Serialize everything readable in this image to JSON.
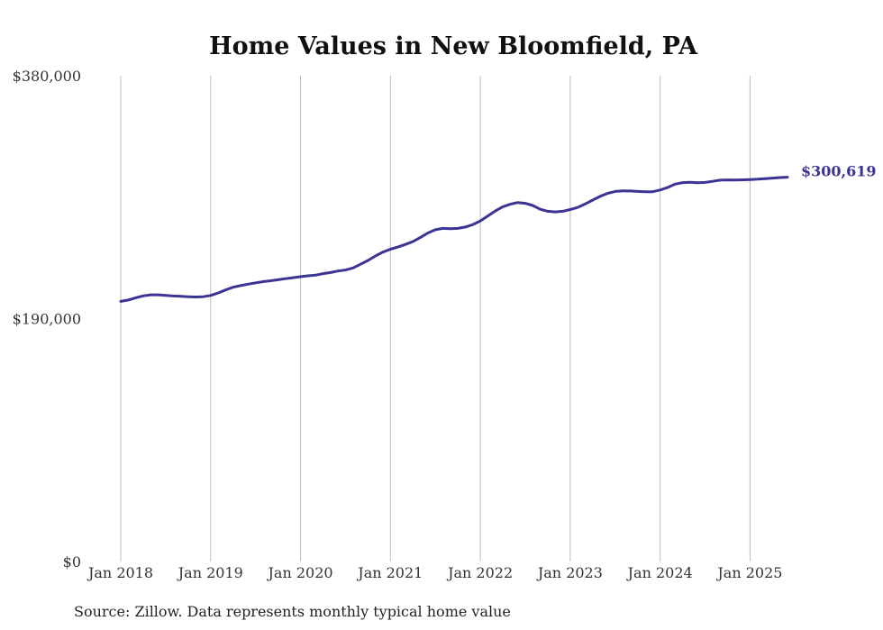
{
  "chart_data": {
    "type": "line",
    "title": "Home Values in New Bloomfield, PA",
    "source": "Source: Zillow. Data represents monthly typical home value",
    "ylim": [
      0,
      380000
    ],
    "yticks": [
      {
        "value": 0,
        "label": "$0"
      },
      {
        "value": 190000,
        "label": "$190,000"
      },
      {
        "value": 380000,
        "label": "$380,000"
      }
    ],
    "xlim": [
      "2018-01",
      "2025-06"
    ],
    "xticks": [
      {
        "value": "2018-01",
        "label": "Jan 2018"
      },
      {
        "value": "2019-01",
        "label": "Jan 2019"
      },
      {
        "value": "2020-01",
        "label": "Jan 2020"
      },
      {
        "value": "2021-01",
        "label": "Jan 2021"
      },
      {
        "value": "2022-01",
        "label": "Jan 2022"
      },
      {
        "value": "2023-01",
        "label": "Jan 2023"
      },
      {
        "value": "2024-01",
        "label": "Jan 2024"
      },
      {
        "value": "2025-01",
        "label": "Jan 2025"
      }
    ],
    "grid": "vertical",
    "line_color": "#3b3494",
    "end_label": "$300,619",
    "series": [
      {
        "x": [
          "2018-01",
          "2018-02",
          "2018-03",
          "2018-04",
          "2018-05",
          "2018-06",
          "2018-07",
          "2018-08",
          "2018-09",
          "2018-10",
          "2018-11",
          "2018-12",
          "2019-01",
          "2019-02",
          "2019-03",
          "2019-04",
          "2019-05",
          "2019-06",
          "2019-07",
          "2019-08",
          "2019-09",
          "2019-10",
          "2019-11",
          "2019-12",
          "2020-01",
          "2020-02",
          "2020-03",
          "2020-04",
          "2020-05",
          "2020-06",
          "2020-07",
          "2020-08",
          "2020-09",
          "2020-10",
          "2020-11",
          "2020-12",
          "2021-01",
          "2021-02",
          "2021-03",
          "2021-04",
          "2021-05",
          "2021-06",
          "2021-07",
          "2021-08",
          "2021-09",
          "2021-10",
          "2021-11",
          "2021-12",
          "2022-01",
          "2022-02",
          "2022-03",
          "2022-04",
          "2022-05",
          "2022-06",
          "2022-07",
          "2022-08",
          "2022-09",
          "2022-10",
          "2022-11",
          "2022-12",
          "2023-01",
          "2023-02",
          "2023-03",
          "2023-04",
          "2023-05",
          "2023-06",
          "2023-07",
          "2023-08",
          "2023-09",
          "2023-10",
          "2023-11",
          "2023-12",
          "2024-01",
          "2024-02",
          "2024-03",
          "2024-04",
          "2024-05",
          "2024-06",
          "2024-07",
          "2024-08",
          "2024-09",
          "2024-10",
          "2024-11",
          "2024-12",
          "2025-01",
          "2025-02",
          "2025-03",
          "2025-04",
          "2025-05",
          "2025-06"
        ],
        "values": [
          203500,
          204500,
          206300,
          207800,
          208600,
          208600,
          208100,
          207700,
          207400,
          207100,
          206900,
          207100,
          208100,
          210000,
          212400,
          214500,
          215800,
          216900,
          218000,
          218900,
          219600,
          220400,
          221200,
          222000,
          222800,
          223500,
          224000,
          225200,
          226000,
          227200,
          228000,
          229600,
          232500,
          235500,
          239000,
          242000,
          244300,
          246000,
          248000,
          250300,
          253500,
          257000,
          259500,
          260600,
          260300,
          260600,
          261600,
          263500,
          266400,
          270300,
          274200,
          277500,
          279500,
          280800,
          280200,
          278500,
          275500,
          274000,
          273500,
          274000,
          275300,
          277000,
          279700,
          282700,
          285700,
          288000,
          289500,
          290000,
          289800,
          289500,
          289200,
          289300,
          290600,
          292600,
          295200,
          296400,
          296700,
          296300,
          296500,
          297400,
          298300,
          298500,
          298400,
          298600,
          298800,
          299100,
          299500,
          299900,
          300300,
          300619
        ]
      }
    ]
  }
}
